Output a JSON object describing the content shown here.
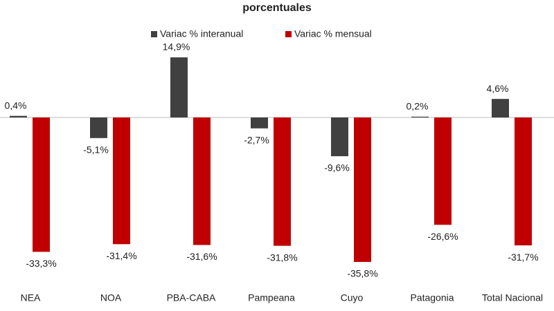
{
  "chart_data": {
    "type": "bar",
    "title": "porcentuales",
    "categories": [
      "NEA",
      "NOA",
      "PBA-CABA",
      "Pampeana",
      "Cuyo",
      "Patagonia",
      "Total Nacional"
    ],
    "series": [
      {
        "name": "Variac % interanual",
        "color": "#404040",
        "values": [
          0.4,
          -5.1,
          14.9,
          -2.7,
          -9.6,
          0.2,
          4.6
        ],
        "value_labels": [
          "0,4%",
          "-5,1%",
          "14,9%",
          "-2,7%",
          "-9,6%",
          "0,2%",
          "4,6%"
        ]
      },
      {
        "name": "Variac % mensual",
        "color": "#c00000",
        "values": [
          -33.3,
          -31.4,
          -31.6,
          -31.8,
          -35.8,
          -26.6,
          -31.7
        ],
        "value_labels": [
          "-33,3%",
          "-31,4%",
          "-31,6%",
          "-31,8%",
          "-35,8%",
          "-26,6%",
          "-31,7%"
        ]
      }
    ]
  }
}
